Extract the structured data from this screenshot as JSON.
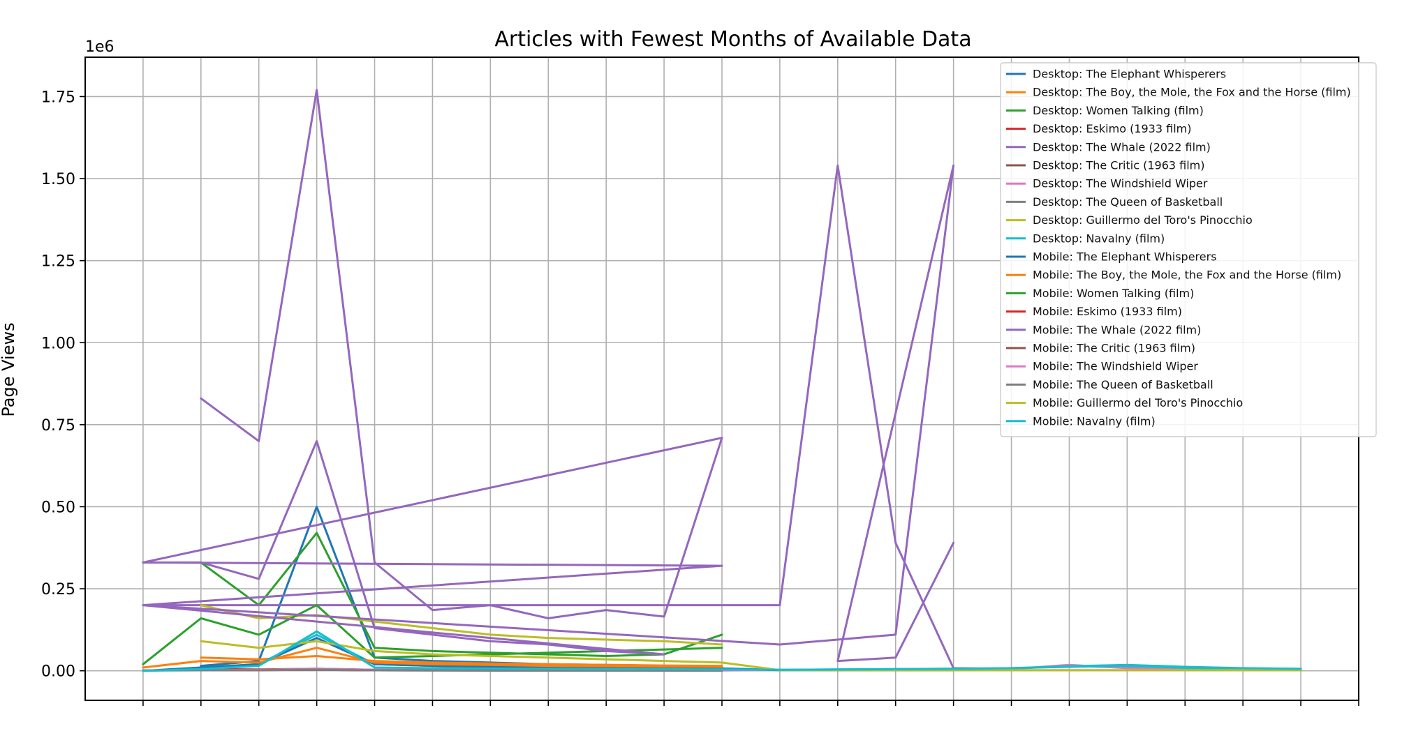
{
  "chart_data": {
    "type": "line",
    "title": "Articles with Fewest Months of Available Data",
    "ylabel": "Page Views",
    "xlabel": "",
    "y_multiplier_label": "1e6",
    "ylim": [
      -90000,
      1870000
    ],
    "xlim": [
      -1,
      21
    ],
    "yticks": [
      0,
      250000,
      500000,
      750000,
      1000000,
      1250000,
      1500000,
      1750000
    ],
    "ytick_labels": [
      "0.00",
      "0.25",
      "0.50",
      "0.75",
      "1.00",
      "1.25",
      "1.50",
      "1.75"
    ],
    "grid": true,
    "legend_position": "upper-right",
    "series": [
      {
        "name": "Desktop: The Elephant Whisperers",
        "color": "#1f77b4",
        "points": [
          [
            1,
            15000
          ],
          [
            2,
            30000
          ],
          [
            3,
            500000
          ],
          [
            4,
            40000
          ],
          [
            5,
            30000
          ],
          [
            6,
            25000
          ],
          [
            7,
            20000
          ],
          [
            8,
            18000
          ],
          [
            9,
            15000
          ],
          [
            10,
            12000
          ]
        ]
      },
      {
        "name": "Desktop: The Boy, the Mole, the Fox and the Horse (film)",
        "color": "#ff7f0e",
        "points": [
          [
            1,
            40000
          ],
          [
            2,
            35000
          ],
          [
            3,
            45000
          ],
          [
            4,
            30000
          ],
          [
            5,
            25000
          ],
          [
            6,
            22000
          ],
          [
            7,
            20000
          ],
          [
            8,
            18000
          ],
          [
            9,
            16000
          ],
          [
            10,
            15000
          ]
        ]
      },
      {
        "name": "Desktop: Women Talking (film)",
        "color": "#2ca02c",
        "points": [
          [
            1,
            330000
          ],
          [
            2,
            200000
          ],
          [
            3,
            420000
          ],
          [
            4,
            70000
          ],
          [
            5,
            60000
          ],
          [
            6,
            55000
          ],
          [
            7,
            50000
          ],
          [
            8,
            45000
          ],
          [
            9,
            50000
          ],
          [
            10,
            110000
          ]
        ]
      },
      {
        "name": "Desktop: Eskimo (1933 film)",
        "color": "#d62728",
        "points": [
          [
            1,
            5000
          ],
          [
            2,
            4000
          ],
          [
            3,
            6000
          ],
          [
            4,
            3000
          ],
          [
            5,
            2500
          ],
          [
            6,
            2000
          ],
          [
            7,
            2000
          ],
          [
            8,
            1800
          ],
          [
            9,
            1500
          ],
          [
            10,
            1500
          ]
        ]
      },
      {
        "name": "Desktop: The Whale (2022 film)",
        "color": "#9467bd",
        "points": [
          [
            1,
            830000
          ],
          [
            2,
            700000
          ],
          [
            3,
            1770000
          ],
          [
            4,
            330000
          ],
          [
            5,
            185000
          ],
          [
            6,
            200000
          ],
          [
            7,
            160000
          ],
          [
            8,
            185000
          ],
          [
            9,
            165000
          ],
          [
            10,
            710000
          ],
          [
            0,
            330000
          ],
          [
            10,
            320000
          ],
          [
            0,
            200000
          ],
          [
            11,
            200000
          ],
          [
            12,
            1540000
          ],
          [
            13,
            390000
          ],
          [
            14,
            8000
          ],
          [
            15,
            6000
          ],
          [
            16,
            15000
          ],
          [
            17,
            10000
          ],
          [
            18,
            8000
          ],
          [
            19,
            5000
          ],
          [
            20,
            3000
          ]
        ]
      },
      {
        "name": "Desktop: The Critic (1963 film)",
        "color": "#8c564b",
        "points": [
          [
            1,
            3000
          ],
          [
            2,
            2500
          ],
          [
            3,
            4000
          ],
          [
            4,
            2000
          ],
          [
            5,
            1800
          ],
          [
            6,
            1500
          ],
          [
            7,
            1500
          ],
          [
            8,
            1200
          ],
          [
            9,
            1200
          ],
          [
            10,
            1000
          ]
        ]
      },
      {
        "name": "Desktop: The Windshield Wiper",
        "color": "#e377c2",
        "points": [
          [
            1,
            2000
          ],
          [
            2,
            3000
          ],
          [
            3,
            6000
          ],
          [
            4,
            3000
          ],
          [
            5,
            2000
          ],
          [
            6,
            2000
          ],
          [
            7,
            1500
          ],
          [
            8,
            1500
          ],
          [
            9,
            1200
          ],
          [
            10,
            1000
          ],
          [
            14,
            6000
          ],
          [
            15,
            5000
          ],
          [
            16,
            18000
          ],
          [
            17,
            8000
          ],
          [
            18,
            5000
          ],
          [
            19,
            3000
          ],
          [
            20,
            2000
          ]
        ]
      },
      {
        "name": "Desktop: The Queen of Basketball",
        "color": "#7f7f7f",
        "points": [
          [
            1,
            2000
          ],
          [
            2,
            2500
          ],
          [
            3,
            5000
          ],
          [
            4,
            2000
          ],
          [
            5,
            1800
          ],
          [
            6,
            1500
          ],
          [
            7,
            1500
          ],
          [
            8,
            1200
          ],
          [
            9,
            1000
          ],
          [
            10,
            1000
          ]
        ]
      },
      {
        "name": "Desktop: Guillermo del Toro's Pinocchio",
        "color": "#bcbd22",
        "points": [
          [
            1,
            200000
          ],
          [
            2,
            160000
          ],
          [
            3,
            170000
          ],
          [
            4,
            150000
          ],
          [
            5,
            130000
          ],
          [
            6,
            110000
          ],
          [
            7,
            100000
          ],
          [
            8,
            95000
          ],
          [
            9,
            90000
          ],
          [
            10,
            80000
          ]
        ]
      },
      {
        "name": "Desktop: Navalny (film)",
        "color": "#17becf",
        "points": [
          [
            1,
            10000
          ],
          [
            2,
            20000
          ],
          [
            3,
            110000
          ],
          [
            4,
            20000
          ],
          [
            5,
            15000
          ],
          [
            6,
            12000
          ],
          [
            7,
            10000
          ],
          [
            8,
            9000
          ],
          [
            9,
            8000
          ],
          [
            10,
            7000
          ],
          [
            11,
            3000
          ],
          [
            12,
            4000
          ],
          [
            13,
            5000
          ],
          [
            14,
            6000
          ],
          [
            15,
            8000
          ],
          [
            16,
            12000
          ],
          [
            17,
            15000
          ],
          [
            18,
            9000
          ],
          [
            19,
            6000
          ],
          [
            20,
            5000
          ]
        ]
      },
      {
        "name": "Mobile: The Elephant Whisperers",
        "color": "#1f77b4",
        "points": [
          [
            0,
            0
          ],
          [
            1,
            10000
          ],
          [
            2,
            20000
          ],
          [
            3,
            100000
          ],
          [
            4,
            20000
          ],
          [
            5,
            15000
          ],
          [
            6,
            12000
          ],
          [
            7,
            10000
          ],
          [
            8,
            9000
          ],
          [
            9,
            8000
          ],
          [
            10,
            7000
          ],
          [
            11,
            2000
          ],
          [
            12,
            2000
          ],
          [
            13,
            2000
          ],
          [
            14,
            2000
          ]
        ]
      },
      {
        "name": "Mobile: The Boy, the Mole, the Fox and the Horse (film)",
        "color": "#ff7f0e",
        "points": [
          [
            0,
            10000
          ],
          [
            1,
            30000
          ],
          [
            2,
            25000
          ],
          [
            3,
            70000
          ],
          [
            4,
            25000
          ],
          [
            5,
            20000
          ],
          [
            6,
            18000
          ],
          [
            7,
            15000
          ],
          [
            8,
            14000
          ],
          [
            9,
            13000
          ],
          [
            10,
            12000
          ]
        ]
      },
      {
        "name": "Mobile: Women Talking (film)",
        "color": "#2ca02c",
        "points": [
          [
            0,
            20000
          ],
          [
            1,
            160000
          ],
          [
            2,
            110000
          ],
          [
            3,
            200000
          ],
          [
            4,
            40000
          ],
          [
            5,
            45000
          ],
          [
            6,
            50000
          ],
          [
            7,
            55000
          ],
          [
            8,
            60000
          ],
          [
            9,
            65000
          ],
          [
            10,
            70000
          ]
        ]
      },
      {
        "name": "Mobile: Eskimo (1933 film)",
        "color": "#d62728",
        "points": [
          [
            0,
            1000
          ],
          [
            1,
            2000
          ],
          [
            2,
            2000
          ],
          [
            3,
            3000
          ],
          [
            4,
            1500
          ],
          [
            5,
            1200
          ],
          [
            6,
            1000
          ],
          [
            7,
            1000
          ],
          [
            8,
            900
          ],
          [
            9,
            800
          ],
          [
            10,
            800
          ]
        ]
      },
      {
        "name": "Mobile: The Whale (2022 film)",
        "color": "#9467bd",
        "points": [
          [
            0,
            330000
          ],
          [
            1,
            330000
          ],
          [
            2,
            280000
          ],
          [
            3,
            700000
          ],
          [
            4,
            130000
          ],
          [
            5,
            110000
          ],
          [
            6,
            90000
          ],
          [
            7,
            80000
          ],
          [
            8,
            60000
          ],
          [
            9,
            50000
          ],
          [
            0,
            200000
          ],
          [
            11,
            80000
          ],
          [
            12,
            95000
          ],
          [
            13,
            110000
          ],
          [
            14,
            1540000
          ],
          [
            12,
            30000
          ],
          [
            13,
            40000
          ],
          [
            14,
            390000
          ]
        ]
      },
      {
        "name": "Mobile: The Critic (1963 film)",
        "color": "#8c564b",
        "points": [
          [
            0,
            1000
          ],
          [
            1,
            2000
          ],
          [
            2,
            2000
          ],
          [
            3,
            3000
          ],
          [
            4,
            1500
          ],
          [
            5,
            1200
          ],
          [
            6,
            1000
          ],
          [
            7,
            1000
          ],
          [
            8,
            900
          ],
          [
            9,
            800
          ],
          [
            10,
            800
          ]
        ]
      },
      {
        "name": "Mobile: The Windshield Wiper",
        "color": "#e377c2",
        "points": [
          [
            0,
            1000
          ],
          [
            1,
            2000
          ],
          [
            2,
            2500
          ],
          [
            3,
            4000
          ],
          [
            4,
            2000
          ],
          [
            5,
            1500
          ],
          [
            6,
            1200
          ],
          [
            7,
            1000
          ],
          [
            8,
            1000
          ],
          [
            9,
            900
          ],
          [
            10,
            800
          ]
        ]
      },
      {
        "name": "Mobile: The Queen of Basketball",
        "color": "#7f7f7f",
        "points": [
          [
            0,
            1000
          ],
          [
            1,
            1500
          ],
          [
            2,
            2000
          ],
          [
            3,
            3000
          ],
          [
            4,
            1500
          ],
          [
            5,
            1200
          ],
          [
            6,
            1000
          ],
          [
            7,
            1000
          ],
          [
            8,
            900
          ],
          [
            9,
            800
          ],
          [
            10,
            800
          ]
        ]
      },
      {
        "name": "Mobile: Guillermo del Toro's Pinocchio",
        "color": "#bcbd22",
        "points": [
          [
            1,
            90000
          ],
          [
            2,
            70000
          ],
          [
            3,
            90000
          ],
          [
            4,
            60000
          ],
          [
            5,
            50000
          ],
          [
            6,
            45000
          ],
          [
            7,
            40000
          ],
          [
            8,
            35000
          ],
          [
            9,
            30000
          ],
          [
            10,
            25000
          ],
          [
            11,
            2000
          ],
          [
            12,
            2000
          ],
          [
            13,
            2000
          ],
          [
            14,
            2000
          ],
          [
            15,
            2000
          ],
          [
            16,
            2000
          ],
          [
            17,
            2000
          ],
          [
            18,
            2000
          ],
          [
            19,
            2000
          ],
          [
            20,
            2000
          ]
        ]
      },
      {
        "name": "Mobile: Navalny (film)",
        "color": "#17becf",
        "points": [
          [
            0,
            0
          ],
          [
            1,
            5000
          ],
          [
            2,
            15000
          ],
          [
            3,
            120000
          ],
          [
            4,
            10000
          ],
          [
            5,
            8000
          ],
          [
            6,
            7000
          ],
          [
            7,
            6000
          ],
          [
            8,
            5000
          ],
          [
            9,
            5000
          ],
          [
            10,
            4000
          ],
          [
            11,
            3000
          ],
          [
            12,
            4000
          ],
          [
            13,
            5000
          ],
          [
            14,
            6000
          ],
          [
            15,
            8000
          ],
          [
            16,
            14000
          ],
          [
            17,
            18000
          ],
          [
            18,
            12000
          ],
          [
            19,
            8000
          ],
          [
            20,
            6000
          ]
        ]
      }
    ]
  }
}
